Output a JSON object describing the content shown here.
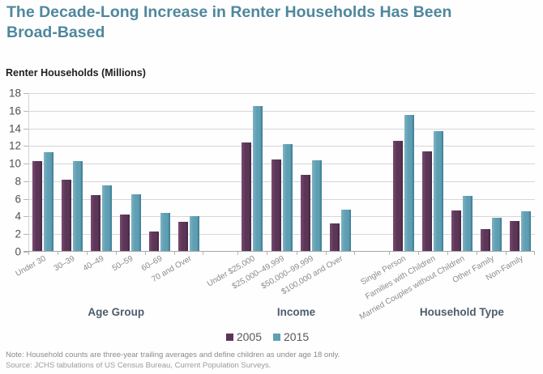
{
  "page": {
    "title": "The Decade-Long Increase in Renter Households Has Been Broad-Based",
    "note": "Note: Household counts are three-year trailing averages and define children as under age 18 only.",
    "source": "Source: JCHS tabulations of US Census Bureau, Current Population Surveys."
  },
  "colors": {
    "title_teal": "#4f879d",
    "series_2005_light": "#7a4a72",
    "series_2005_mid": "#5c3656",
    "series_2005_dark": "#432647",
    "series_2015_light": "#7fb2c2",
    "series_2015_mid": "#5f9fb4",
    "series_2015_dark": "#3d7a90"
  },
  "chart_data": {
    "type": "bar",
    "title": "The Decade-Long Increase in Renter Households Has Been Broad-Based",
    "ylabel": "Renter Households (Millions)",
    "ylim": [
      0,
      18
    ],
    "ytick_step": 2,
    "grid": true,
    "legend_position": "bottom-center",
    "series_names": [
      "2005",
      "2015"
    ],
    "groups": [
      {
        "label": "Age Group",
        "categories": [
          "Under 30",
          "30–39",
          "40–49",
          "50–59",
          "60–69",
          "70 and Over"
        ],
        "series": [
          {
            "name": "2005",
            "values": [
              10.3,
              8.2,
              6.4,
              4.2,
              2.3,
              3.4
            ]
          },
          {
            "name": "2015",
            "values": [
              11.3,
              10.3,
              7.5,
              6.5,
              4.4,
              4.0
            ]
          }
        ]
      },
      {
        "label": "Income",
        "categories": [
          "Under $25,000",
          "$25,000–49,999",
          "$50,000–99,999",
          "$100,000 and Over"
        ],
        "series": [
          {
            "name": "2005",
            "values": [
              12.4,
              10.5,
              8.7,
              3.2
            ]
          },
          {
            "name": "2015",
            "values": [
              16.5,
              12.2,
              10.4,
              4.8
            ]
          }
        ]
      },
      {
        "label": "Household Type",
        "categories": [
          "Single Person",
          "Families with Children",
          "Married Couples without Children",
          "Other Family",
          "Non-Family"
        ],
        "series": [
          {
            "name": "2005",
            "values": [
              12.6,
              11.4,
              4.7,
              2.6,
              3.5
            ]
          },
          {
            "name": "2015",
            "values": [
              15.5,
              13.7,
              6.3,
              3.9,
              4.6
            ]
          }
        ]
      }
    ]
  }
}
